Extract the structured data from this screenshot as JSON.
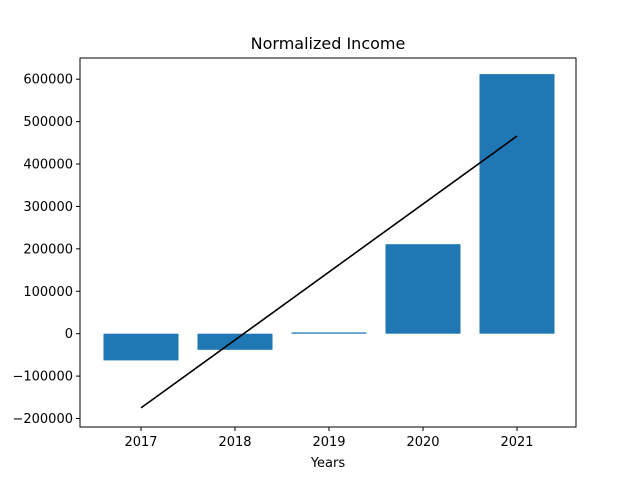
{
  "chart_data": {
    "type": "bar",
    "title": "Normalized Income",
    "xlabel": "Years",
    "ylabel": "",
    "categories": [
      "2017",
      "2018",
      "2019",
      "2020",
      "2021"
    ],
    "values": [
      -63000,
      -38000,
      3000,
      211000,
      612000
    ],
    "ylim": [
      -220000,
      650000
    ],
    "yticks": [
      -200000,
      -100000,
      0,
      100000,
      200000,
      300000,
      400000,
      500000,
      600000
    ],
    "ytick_labels": [
      "−200000",
      "−100000",
      "0",
      "100000",
      "200000",
      "300000",
      "400000",
      "500000",
      "600000"
    ],
    "bar_color": "#1f77b4",
    "trend_line": {
      "color": "#000000",
      "start": [
        "2017",
        -175000
      ],
      "end": [
        "2021",
        466000
      ]
    },
    "grid": false,
    "legend": "none"
  }
}
